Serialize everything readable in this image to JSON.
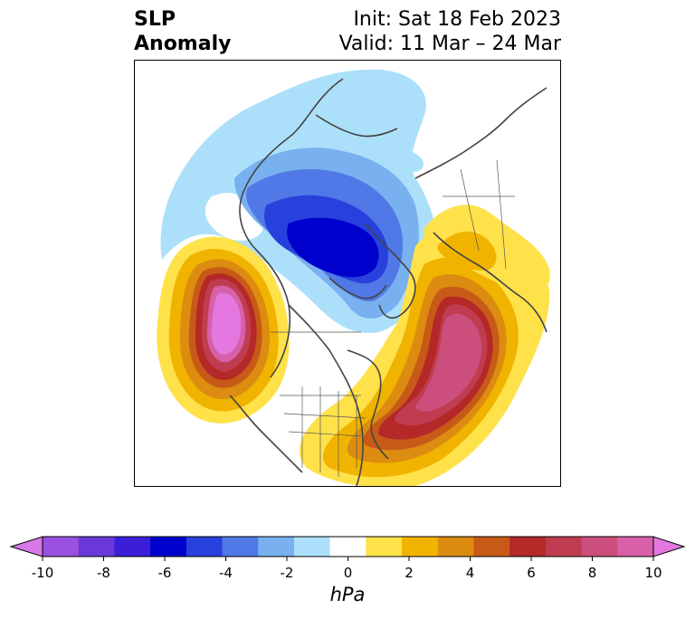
{
  "title": {
    "left_line1": "SLP",
    "left_line2": "Anomaly",
    "init": "Init: Sat 18 Feb 2023",
    "valid": "Valid: 11 Mar – 24 Mar"
  },
  "colorbar": {
    "unit": "hPa",
    "ticks": [
      "-10",
      "-8",
      "-6",
      "-4",
      "-2",
      "0",
      "2",
      "4",
      "6",
      "8",
      "10"
    ],
    "colors": [
      "#d878e8",
      "#9a50e0",
      "#6a38d8",
      "#3a1ed8",
      "#0000cd",
      "#2840dc",
      "#5078e6",
      "#78b0f0",
      "#ace0fa",
      "#ffffff",
      "#ffe14a",
      "#f0b400",
      "#dc8c10",
      "#c85a18",
      "#b42828",
      "#c03c50",
      "#cc4e7c",
      "#d860a8",
      "#e478e0"
    ],
    "extend": "both"
  },
  "map": {
    "field": "sea level pressure anomaly",
    "features": [
      "negative anomaly centered over northern Canada / Arctic",
      "positive anomaly over Gulf of Alaska",
      "positive anomaly over North Atlantic / Greenland region"
    ]
  }
}
